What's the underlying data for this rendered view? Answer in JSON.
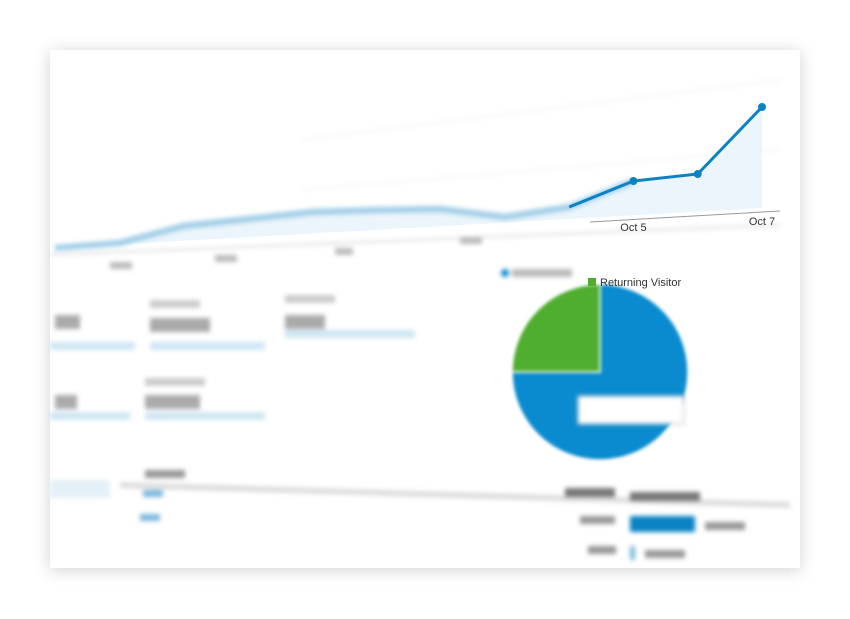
{
  "line_chart": {
    "type": "line",
    "categories": [
      null,
      null,
      null,
      null,
      null,
      null,
      null,
      null,
      null,
      "Oct 5",
      null,
      "Oct 7"
    ],
    "values": [
      12,
      17,
      34,
      41,
      48,
      50,
      51,
      43,
      53,
      79,
      86,
      153
    ],
    "color": "#0a82c4"
  },
  "pie_chart": {
    "type": "pie",
    "series": [
      {
        "color": "#0a8bcf",
        "value": 75
      },
      {
        "name": "Returning Visitor",
        "color": "#4fae2f",
        "value": 25
      }
    ]
  }
}
